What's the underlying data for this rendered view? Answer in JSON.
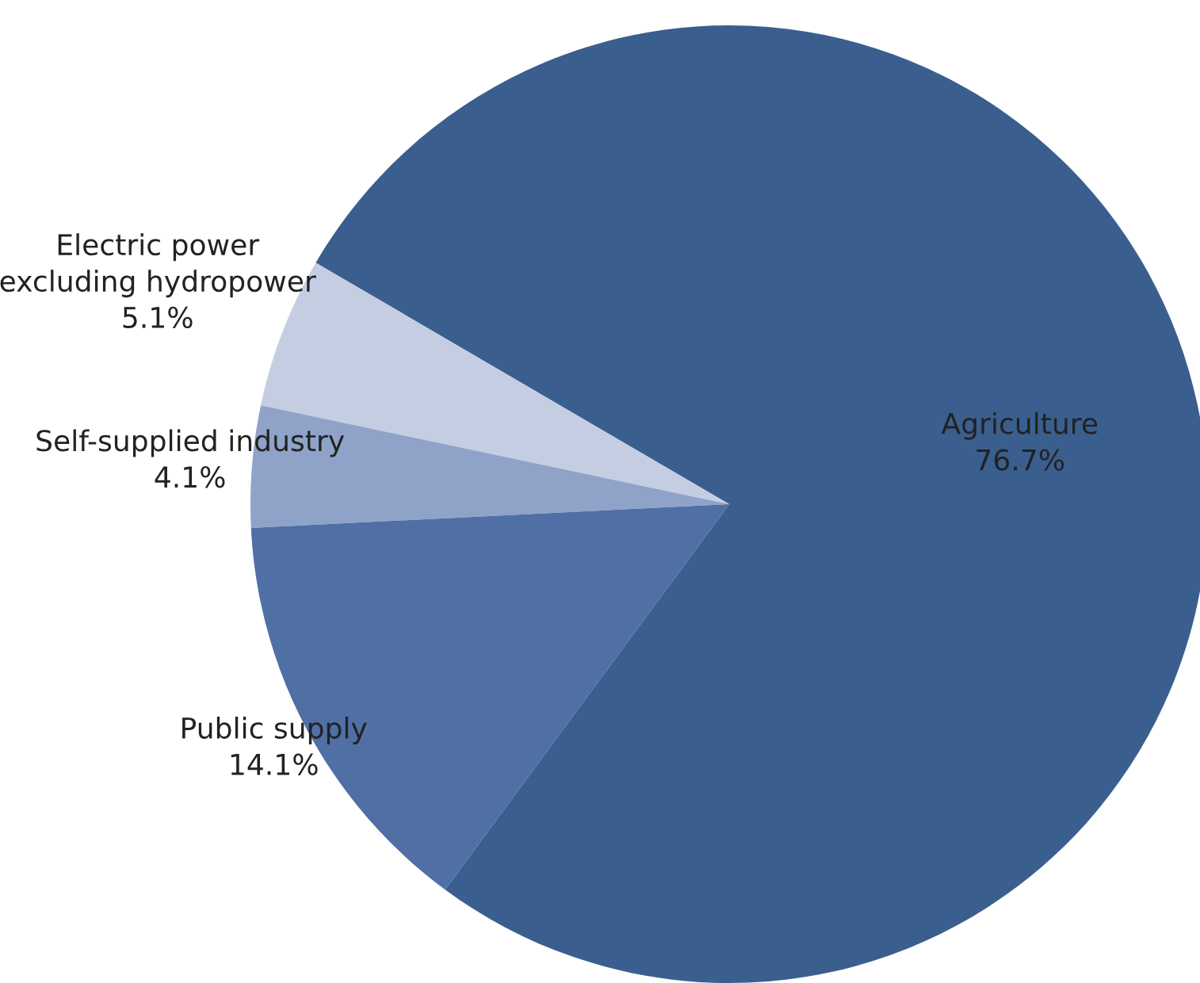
{
  "chart_data": {
    "type": "pie",
    "categories": [
      "Agriculture",
      "Electric power\nexcluding hydropower",
      "Self-supplied industry",
      "Public supply"
    ],
    "values": [
      76.7,
      5.1,
      4.1,
      14.1
    ],
    "colors": [
      "#3a5f8f",
      "#c5cde3",
      "#8fa3c9",
      "#4f6fa5"
    ],
    "value_labels": [
      "76.7%",
      "5.1%",
      "4.1%",
      "14.1%"
    ],
    "legend": false
  }
}
